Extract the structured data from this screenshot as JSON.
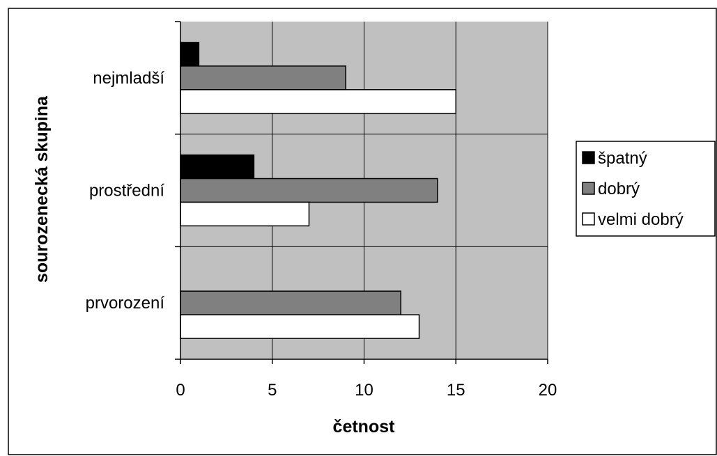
{
  "chart_data": {
    "type": "bar",
    "orientation": "horizontal",
    "categories": [
      "nejmladší",
      "prostřední",
      "prvorození"
    ],
    "series": [
      {
        "name": "špatný",
        "values": [
          1,
          4,
          0
        ],
        "color": "#000000"
      },
      {
        "name": "dobrý",
        "values": [
          9,
          14,
          12
        ],
        "color": "#808080"
      },
      {
        "name": "velmi dobrý",
        "values": [
          15,
          7,
          13
        ],
        "color": "#ffffff"
      }
    ],
    "xlabel": "četnost",
    "ylabel": "sourozenecká skupina",
    "xlim": [
      0,
      20
    ],
    "xticks": [
      "0",
      "5",
      "10",
      "15",
      "20"
    ],
    "grid": true,
    "plot_background": "#c0c0c0",
    "legend_position": "right"
  }
}
